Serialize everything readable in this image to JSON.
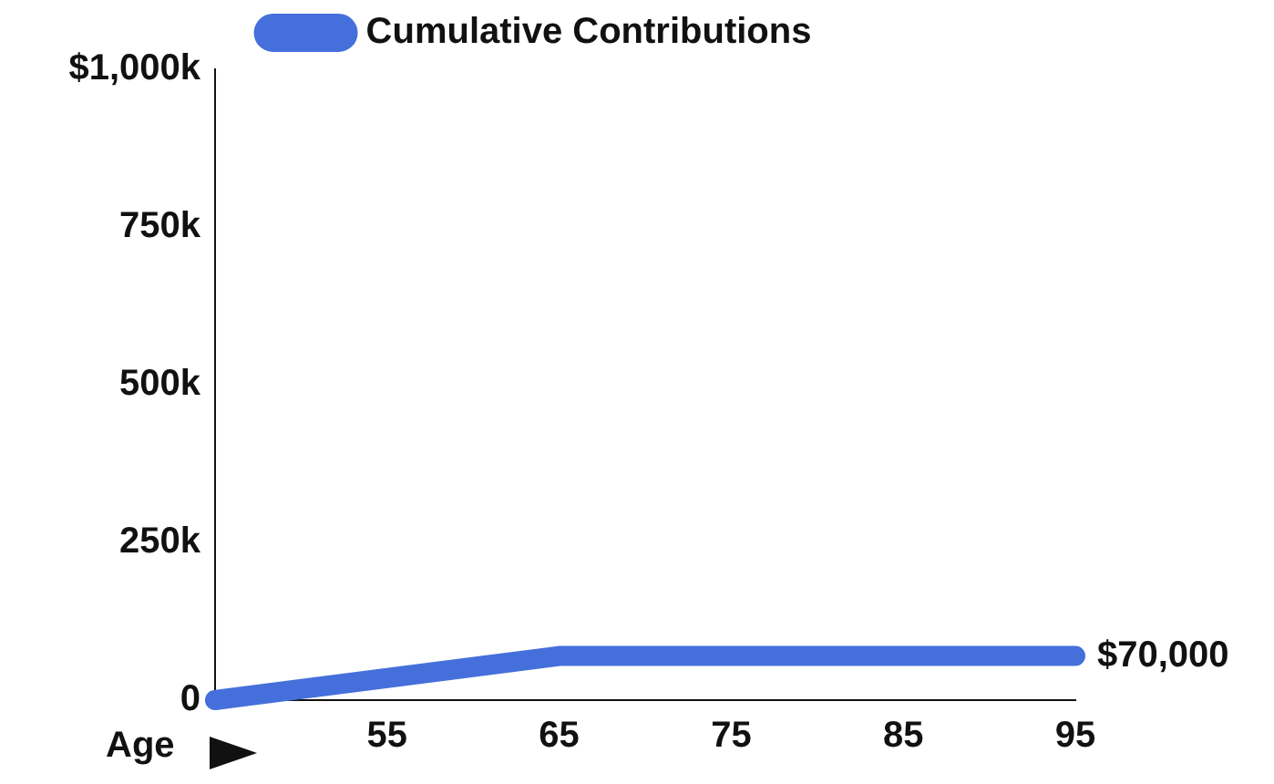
{
  "chart_data": {
    "type": "line",
    "xlabel": "Age",
    "x": [
      45,
      65,
      95
    ],
    "series": [
      {
        "name": "Cumulative Contributions",
        "color": "#4570db",
        "values": [
          0,
          70000,
          70000
        ]
      }
    ],
    "xlim": [
      45,
      95
    ],
    "xticks": [
      55,
      65,
      75,
      85,
      95
    ],
    "ylim": [
      0,
      1000000
    ],
    "yticks": [
      0,
      {
        "value": 250000,
        "label": "250k"
      },
      {
        "value": 500000,
        "label": "500k"
      },
      {
        "value": 750000,
        "label": "750k"
      },
      {
        "value": 1000000,
        "label": "$1,000k"
      }
    ],
    "annotations": [
      {
        "text": "$70,000",
        "x": 95,
        "y": 70000
      }
    ],
    "grid": false,
    "legend": "top",
    "marker": "none",
    "line_style": "solid"
  }
}
